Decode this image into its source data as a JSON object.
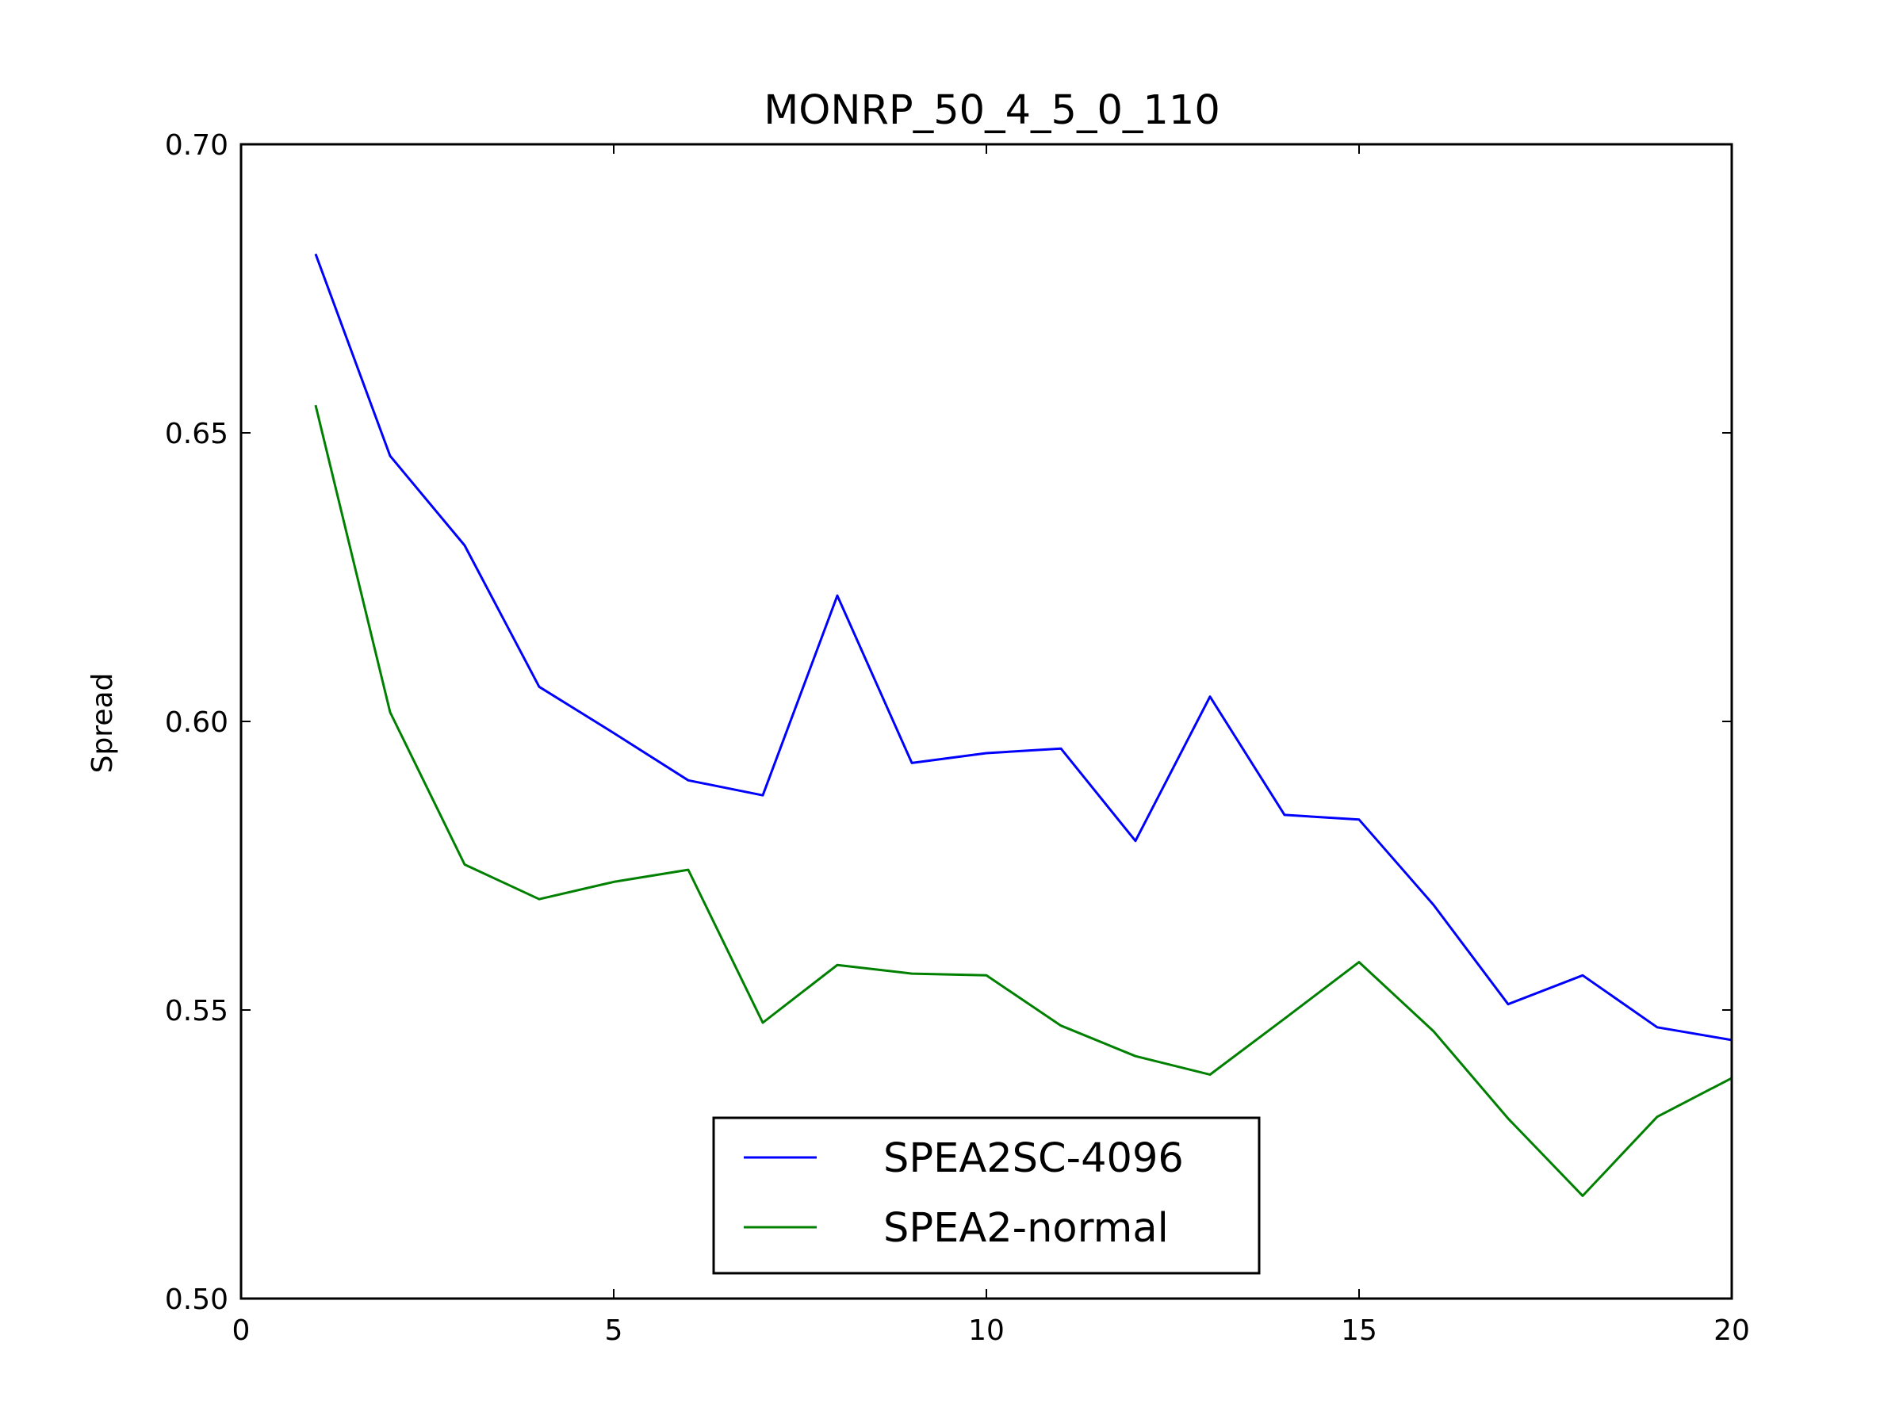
{
  "chart_data": {
    "type": "line",
    "title": "MONRP_50_4_5_0_110",
    "xlabel": "",
    "ylabel": "Spread",
    "xlim": [
      0,
      20
    ],
    "ylim": [
      0.5,
      0.7
    ],
    "x_ticks": [
      0,
      5,
      10,
      15,
      20
    ],
    "x_tick_labels": [
      "0",
      "5",
      "10",
      "15",
      "20"
    ],
    "y_ticks": [
      0.5,
      0.55,
      0.6,
      0.65,
      0.7
    ],
    "y_tick_labels": [
      "0.50",
      "0.55",
      "0.60",
      "0.65",
      "0.70"
    ],
    "grid": false,
    "legend_position": "lower-center",
    "x": [
      1,
      2,
      3,
      4,
      5,
      6,
      7,
      8,
      9,
      10,
      11,
      12,
      13,
      14,
      15,
      16,
      17,
      18,
      19,
      20
    ],
    "series": [
      {
        "name": "SPEA2SC-4096",
        "color": "#0000ff",
        "values": [
          0.681,
          0.646,
          0.6305,
          0.606,
          0.598,
          0.5898,
          0.5872,
          0.6218,
          0.5928,
          0.5945,
          0.5953,
          0.5793,
          0.6043,
          0.5838,
          0.583,
          0.5682,
          0.551,
          0.556,
          0.547,
          0.5448
        ]
      },
      {
        "name": "SPEA2-normal",
        "color": "#008000",
        "values": [
          0.6548,
          0.6016,
          0.5752,
          0.5692,
          0.5722,
          0.5743,
          0.5478,
          0.5578,
          0.5563,
          0.556,
          0.5473,
          0.542,
          0.5388,
          0.5485,
          0.5583,
          0.5463,
          0.5312,
          0.5178,
          0.5315,
          0.5382
        ]
      }
    ]
  }
}
